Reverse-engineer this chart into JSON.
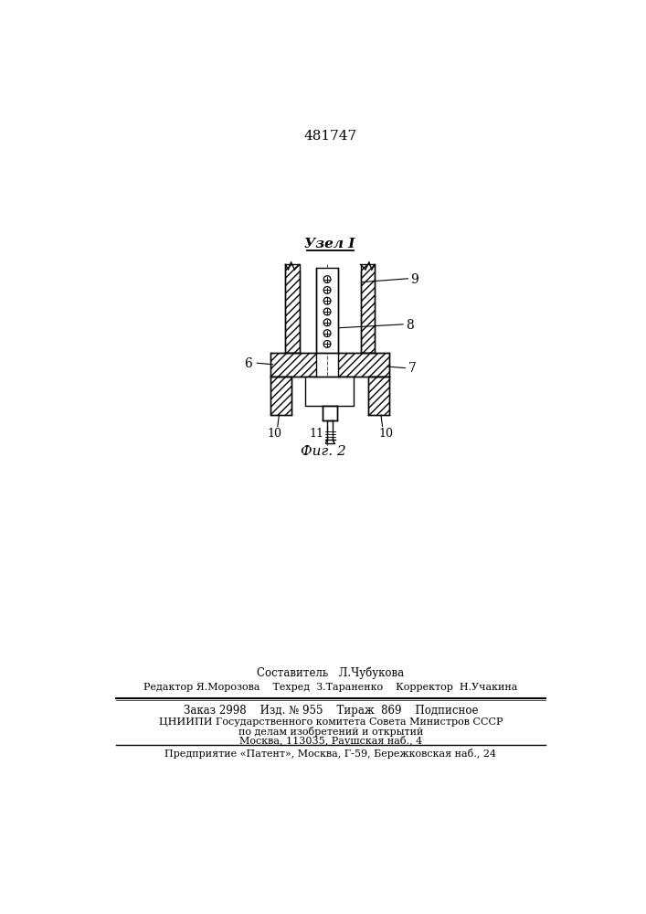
{
  "title_number": "481747",
  "fig_title": "Узел I",
  "fig_caption": "Фиг. 2",
  "bg_color": "#ffffff",
  "line_color": "#000000",
  "footer_lines": [
    "Составитель   Л.Чубукова",
    "Редактор Я.Морозова    Техред  З.Тараненко    Корректор  Н.Учакина",
    "Заказ 2998    Изд. № 955    Тираж  869    Подписное",
    "ЦНИИПИ Государственного комитета Совета Министров СССР",
    "по делам изобретений и открытий",
    "Москва, 113035, Раушская наб., 4",
    "Предприятие «Патент», Москва, Г-59, Бережковская наб., 24"
  ]
}
